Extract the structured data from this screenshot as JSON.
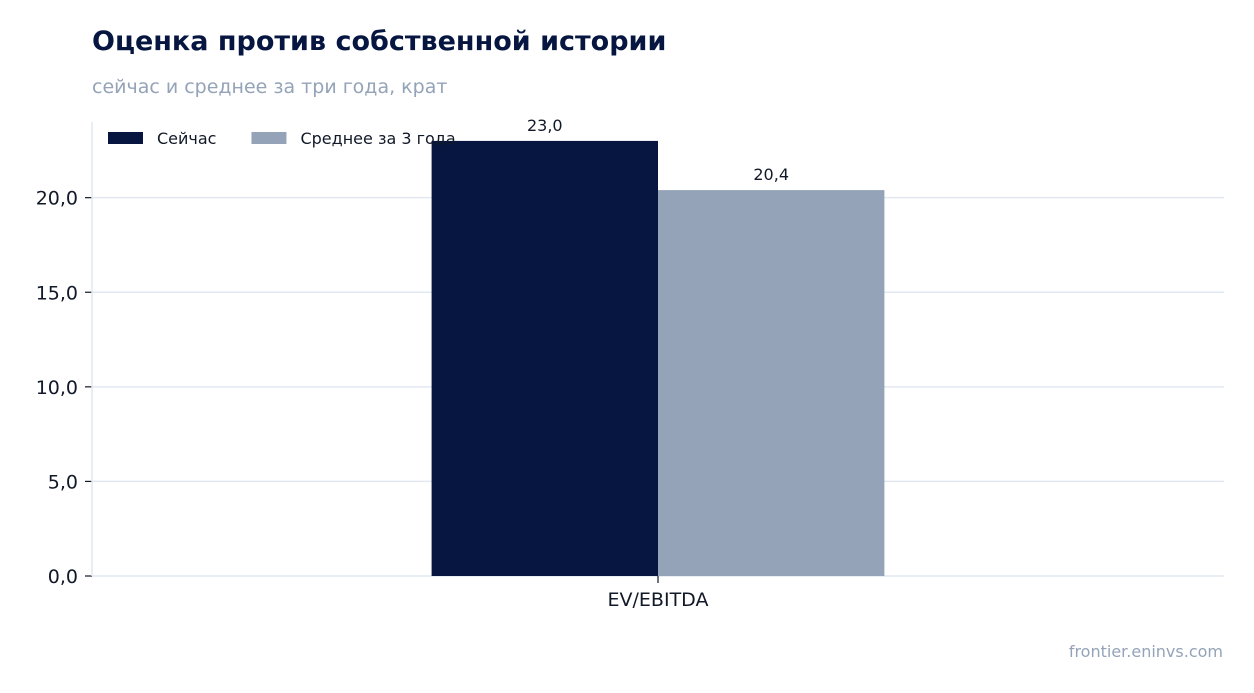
{
  "chart_data": {
    "type": "bar",
    "title": "Оценка против собственной истории",
    "subtitle": "сейчас и среднее за три года, крат",
    "categories": [
      "EV/EBITDA"
    ],
    "series": [
      {
        "name": "Сейчас",
        "values": [
          23.0
        ],
        "labels": [
          "23,0"
        ],
        "color": "#061640"
      },
      {
        "name": "Среднее за 3 года",
        "values": [
          20.4
        ],
        "labels": [
          "20,4"
        ],
        "color": "#94a3b8"
      }
    ],
    "xlabel": "",
    "ylabel": "",
    "ylim": [
      0,
      24
    ],
    "yticks": [
      0,
      5,
      10,
      15,
      20
    ],
    "ytick_labels": [
      "0,0",
      "5,0",
      "10,0",
      "15,0",
      "20,0"
    ],
    "grid": "horizontal",
    "legend_position": "top-left",
    "colors": {
      "title": "#061640",
      "subtitle": "#94a3b8",
      "grid": "#e2e8f0",
      "axis": "#e2e8f0"
    }
  },
  "watermark": "frontier.eninvs.com"
}
